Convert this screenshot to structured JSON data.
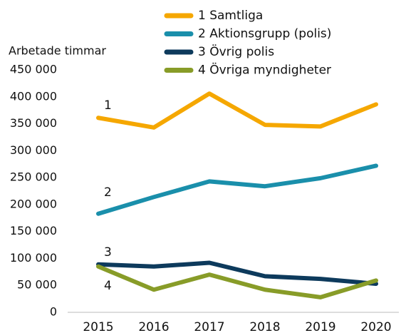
{
  "chart_data": {
    "type": "line",
    "y_label": "Arbetade timmar",
    "categories": [
      "2015",
      "2016",
      "2017",
      "2018",
      "2019",
      "2020"
    ],
    "series": [
      {
        "name": "1 Samtliga",
        "color": "#f5a700",
        "values": [
          361000,
          343000,
          406000,
          348000,
          345000,
          386000
        ]
      },
      {
        "name": "2 Aktionsgrupp (polis)",
        "color": "#1a8fab",
        "values": [
          183000,
          214000,
          243000,
          234000,
          249000,
          272000
        ]
      },
      {
        "name": "3 Övrig polis",
        "color": "#0d3a5c",
        "values": [
          89000,
          85000,
          92000,
          67000,
          62000,
          53000
        ]
      },
      {
        "name": "4 Övriga myndigheter",
        "color": "#889c28",
        "values": [
          85000,
          42000,
          70000,
          42000,
          28000,
          59000
        ]
      }
    ],
    "annotations": [
      "1",
      "2",
      "3",
      "4"
    ],
    "ylim": [
      0,
      450000
    ],
    "yticks": [
      0,
      {
        "value": 50000,
        "label": "50 000"
      },
      {
        "value": 100000,
        "label": "100 000"
      },
      {
        "value": 150000,
        "label": "150 000"
      },
      {
        "value": 200000,
        "label": "200 000"
      },
      {
        "value": 250000,
        "label": "250 000"
      },
      {
        "value": 300000,
        "label": "300 000"
      },
      {
        "value": 350000,
        "label": "350 000"
      },
      {
        "value": 400000,
        "label": "400 000"
      },
      {
        "value": 450000,
        "label": "450 000"
      }
    ],
    "grid": false,
    "legend": "top"
  }
}
